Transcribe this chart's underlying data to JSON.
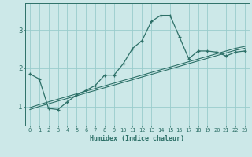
{
  "xlabel": "Humidex (Indice chaleur)",
  "bg_color": "#cce8e8",
  "grid_color": "#99cccc",
  "line_color": "#2d7068",
  "x_values": [
    0,
    1,
    2,
    3,
    4,
    5,
    6,
    7,
    8,
    9,
    10,
    11,
    12,
    13,
    14,
    15,
    16,
    17,
    18,
    19,
    20,
    21,
    22,
    23
  ],
  "curve1": [
    1.85,
    1.72,
    0.95,
    0.92,
    1.12,
    1.3,
    1.42,
    1.55,
    1.82,
    1.82,
    2.12,
    2.52,
    2.72,
    3.22,
    3.38,
    3.38,
    2.82,
    2.25,
    2.45,
    2.45,
    2.42,
    2.32,
    2.42,
    2.45
  ],
  "line2": [
    0.92,
    1.0,
    1.07,
    1.14,
    1.21,
    1.28,
    1.35,
    1.42,
    1.49,
    1.56,
    1.63,
    1.7,
    1.77,
    1.84,
    1.91,
    1.98,
    2.05,
    2.12,
    2.19,
    2.26,
    2.33,
    2.4,
    2.47,
    2.52
  ],
  "line3": [
    0.97,
    1.05,
    1.12,
    1.19,
    1.26,
    1.33,
    1.4,
    1.47,
    1.54,
    1.61,
    1.68,
    1.75,
    1.82,
    1.89,
    1.96,
    2.03,
    2.1,
    2.17,
    2.24,
    2.31,
    2.38,
    2.45,
    2.52,
    2.57
  ],
  "ylim": [
    0.5,
    3.7
  ],
  "yticks": [
    1,
    2,
    3
  ],
  "xticks": [
    0,
    1,
    2,
    3,
    4,
    5,
    6,
    7,
    8,
    9,
    10,
    11,
    12,
    13,
    14,
    15,
    16,
    17,
    18,
    19,
    20,
    21,
    22,
    23
  ]
}
